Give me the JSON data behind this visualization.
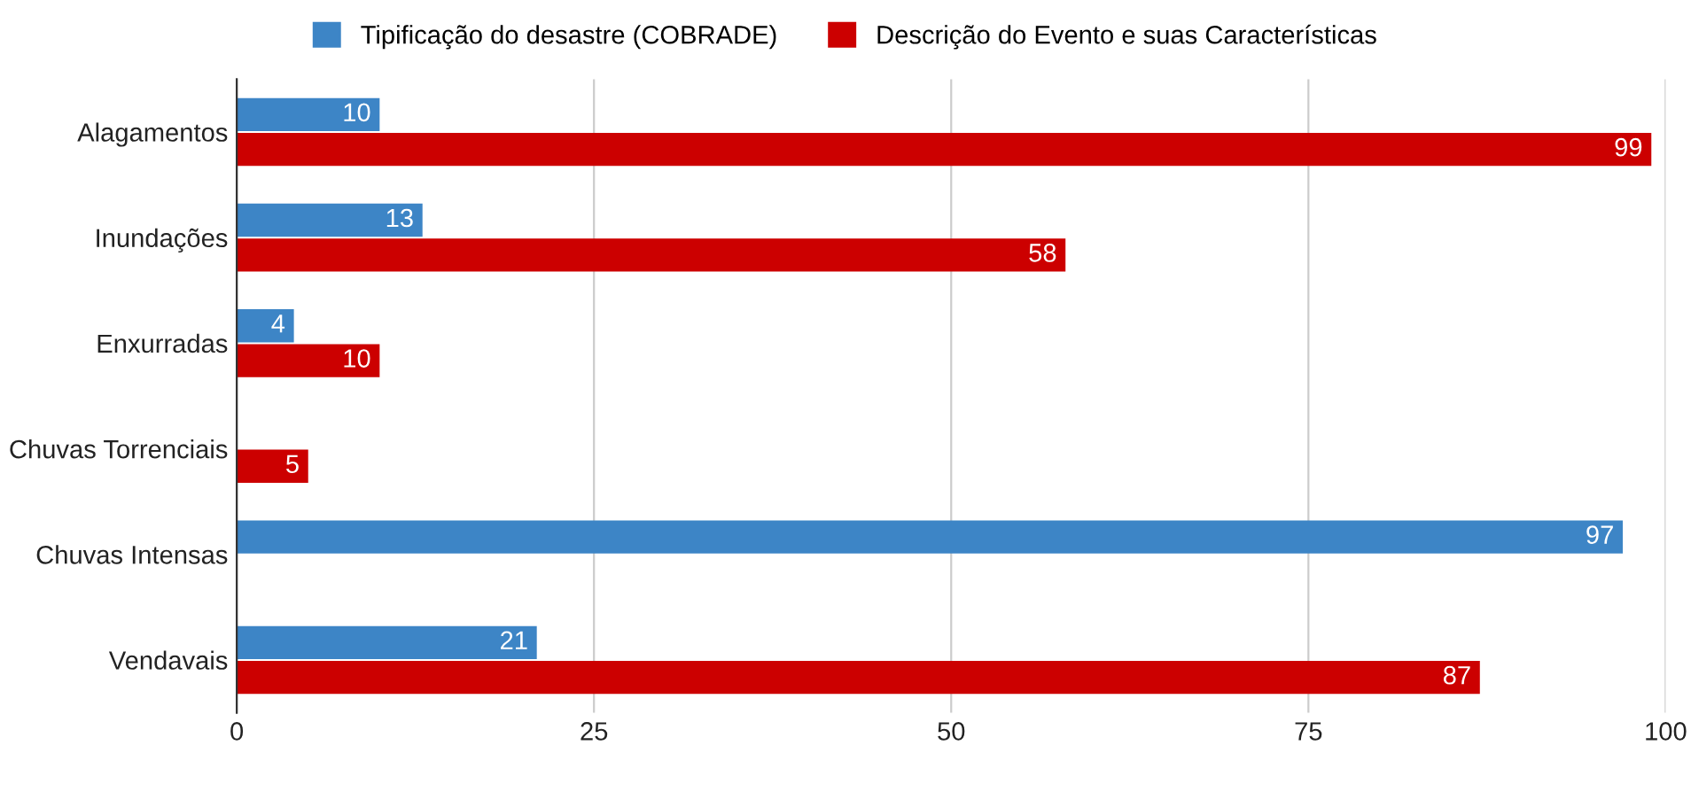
{
  "chart_data": {
    "type": "bar",
    "orientation": "horizontal",
    "categories": [
      "Alagamentos",
      "Inundações",
      "Enxurradas",
      "Chuvas Torrenciais",
      "Chuvas Intensas",
      "Vendavais"
    ],
    "series": [
      {
        "name": "Tipificação do desastre (COBRADE)",
        "color": "#3d85c6",
        "values": [
          10,
          13,
          4,
          null,
          97,
          21
        ]
      },
      {
        "name": "Descrição do Evento e suas Características",
        "color": "#cc0000",
        "values": [
          99,
          58,
          10,
          5,
          null,
          87
        ]
      }
    ],
    "xlim": [
      0,
      100
    ],
    "xticks": [
      0,
      25,
      50,
      75,
      100
    ],
    "grid": "x",
    "legend": "top",
    "data_labels": true
  }
}
